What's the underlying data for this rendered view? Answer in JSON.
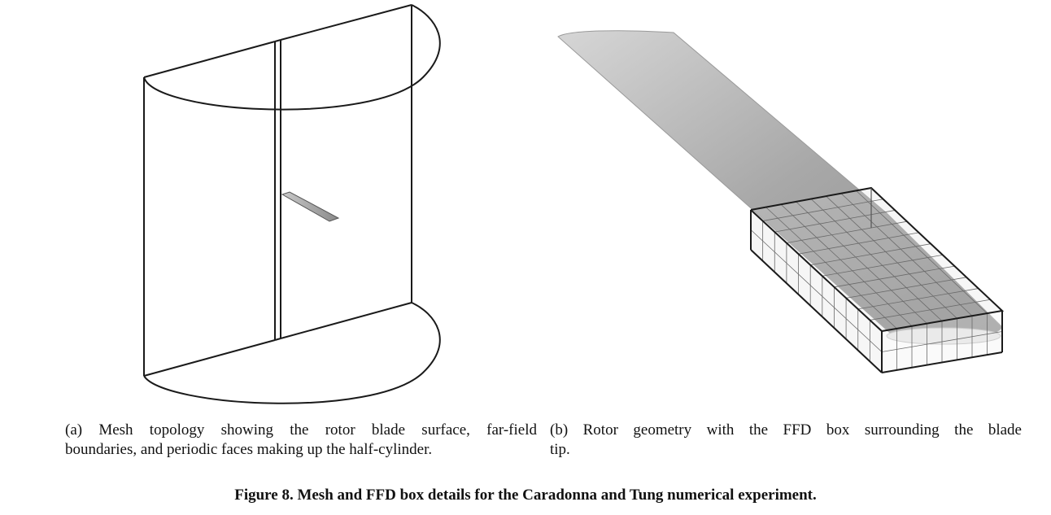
{
  "subfigure_a": {
    "caption_line_1": "(a) Mesh topology showing the rotor blade surface, far-field",
    "caption_line_2": "boundaries, and periodic faces making up the half-cylinder."
  },
  "subfigure_b": {
    "caption_line_1": "(b) Rotor geometry with the FFD box surrounding the blade",
    "caption_line_2": "tip."
  },
  "figure": {
    "title": "Figure 8.   Mesh and FFD box details for the Caradonna and Tung numerical experiment."
  }
}
